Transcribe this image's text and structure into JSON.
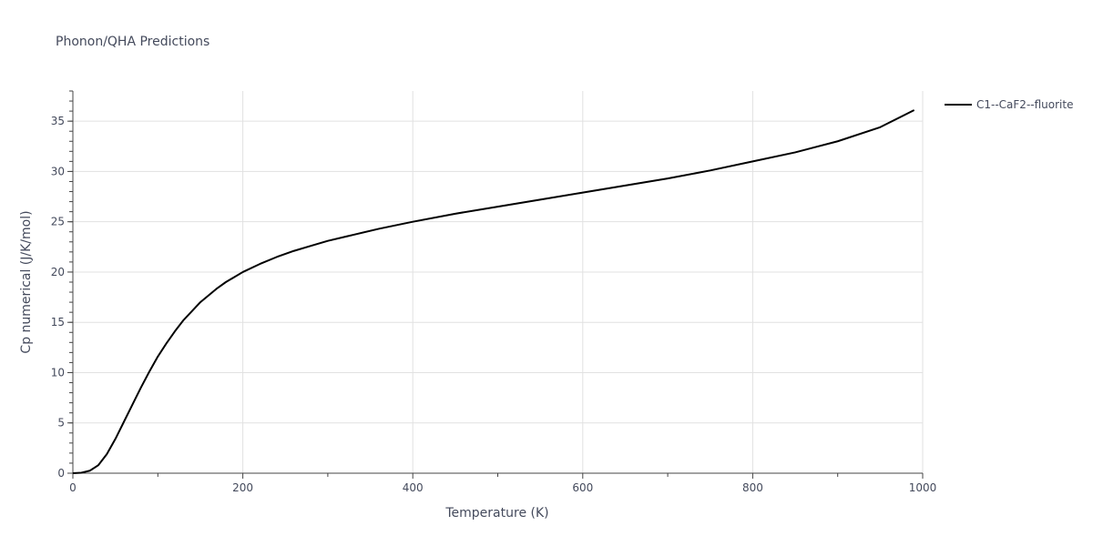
{
  "chart_data": {
    "type": "line",
    "title": "Phonon/QHA Predictions",
    "xlabel": "Temperature (K)",
    "ylabel": "Cp numerical (J/K/mol)",
    "xlim": [
      0,
      1000
    ],
    "ylim": [
      0,
      38
    ],
    "x_ticks": [
      0,
      200,
      400,
      600,
      800,
      1000
    ],
    "y_ticks": [
      0,
      5,
      10,
      15,
      20,
      25,
      30,
      35
    ],
    "grid": true,
    "legend_position": "top-right",
    "line_color": "#000000",
    "series": [
      {
        "name": "C1--CaF2--fluorite",
        "x": [
          0,
          10,
          20,
          30,
          40,
          50,
          60,
          70,
          80,
          90,
          100,
          110,
          120,
          130,
          140,
          150,
          160,
          170,
          180,
          190,
          200,
          220,
          240,
          260,
          280,
          300,
          330,
          360,
          400,
          450,
          500,
          550,
          600,
          650,
          700,
          750,
          800,
          850,
          900,
          950,
          990
        ],
        "values": [
          0,
          0.05,
          0.25,
          0.8,
          1.9,
          3.4,
          5.1,
          6.8,
          8.5,
          10.1,
          11.6,
          12.9,
          14.1,
          15.2,
          16.1,
          17.0,
          17.7,
          18.4,
          19.0,
          19.5,
          20.0,
          20.8,
          21.5,
          22.1,
          22.6,
          23.1,
          23.7,
          24.3,
          25.0,
          25.8,
          26.5,
          27.2,
          27.9,
          28.6,
          29.3,
          30.1,
          31.0,
          31.9,
          33.0,
          34.4,
          36.1
        ]
      }
    ]
  }
}
